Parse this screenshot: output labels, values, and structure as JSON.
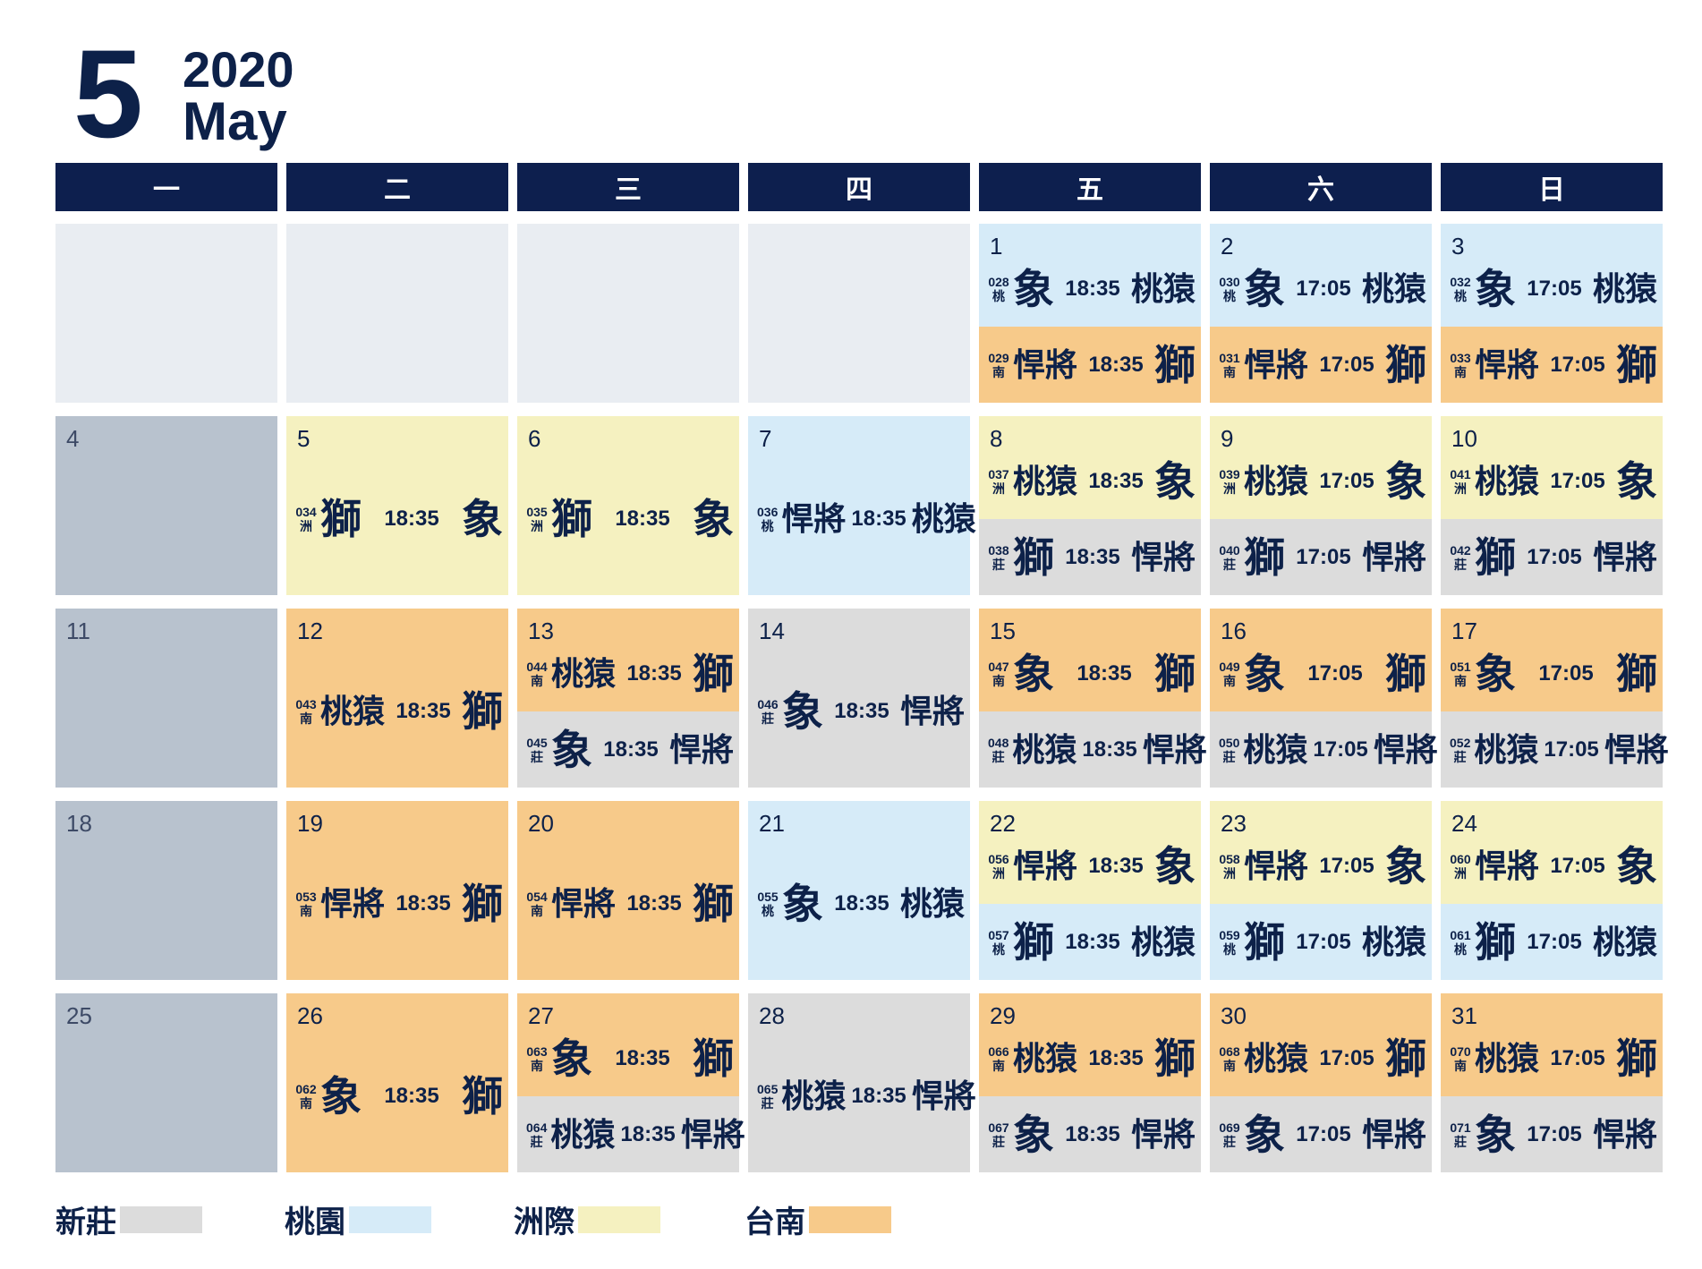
{
  "header": {
    "month_number": "5",
    "year": "2020",
    "month_name": "May"
  },
  "weekdays": [
    "一",
    "二",
    "三",
    "四",
    "五",
    "六",
    "日"
  ],
  "colors": {
    "新莊": "#dcdcdc",
    "桃園": "#d6ebf8",
    "洲際": "#f5f1c0",
    "台南": "#f7ca8a",
    "header": "#0d1f4e",
    "text": "#0d2149"
  },
  "legend": [
    {
      "label": "新莊",
      "color": "#dcdcdc"
    },
    {
      "label": "桃園",
      "color": "#d6ebf8"
    },
    {
      "label": "洲際",
      "color": "#f5f1c0"
    },
    {
      "label": "台南",
      "color": "#f7ca8a"
    }
  ],
  "weeks": [
    {
      "days": [
        {
          "blank": true
        },
        {
          "blank": true
        },
        {
          "blank": true
        },
        {
          "blank": true
        },
        {
          "day": "1",
          "games": [
            {
              "no": "028",
              "venue": "桃",
              "away": "象",
              "time": "18:35",
              "home": "桃猿",
              "color": "ty"
            },
            {
              "no": "029",
              "venue": "南",
              "away": "悍將",
              "time": "18:35",
              "home": "獅",
              "color": "tn"
            }
          ]
        },
        {
          "day": "2",
          "games": [
            {
              "no": "030",
              "venue": "桃",
              "away": "象",
              "time": "17:05",
              "home": "桃猿",
              "color": "ty"
            },
            {
              "no": "031",
              "venue": "南",
              "away": "悍將",
              "time": "17:05",
              "home": "獅",
              "color": "tn"
            }
          ]
        },
        {
          "day": "3",
          "games": [
            {
              "no": "032",
              "venue": "桃",
              "away": "象",
              "time": "17:05",
              "home": "桃猿",
              "color": "ty"
            },
            {
              "no": "033",
              "venue": "南",
              "away": "悍將",
              "time": "17:05",
              "home": "獅",
              "color": "tn"
            }
          ]
        }
      ]
    },
    {
      "days": [
        {
          "day": "4",
          "off": true
        },
        {
          "day": "5",
          "games": [
            {
              "no": "034",
              "venue": "洲",
              "away": "獅",
              "time": "18:35",
              "home": "象",
              "color": "zj"
            }
          ]
        },
        {
          "day": "6",
          "games": [
            {
              "no": "035",
              "venue": "洲",
              "away": "獅",
              "time": "18:35",
              "home": "象",
              "color": "zj"
            }
          ]
        },
        {
          "day": "7",
          "games": [
            {
              "no": "036",
              "venue": "桃",
              "away": "悍將",
              "time": "18:35",
              "home": "桃猿",
              "color": "ty"
            }
          ]
        },
        {
          "day": "8",
          "games": [
            {
              "no": "037",
              "venue": "洲",
              "away": "桃猿",
              "time": "18:35",
              "home": "象",
              "color": "zj"
            },
            {
              "no": "038",
              "venue": "莊",
              "away": "獅",
              "time": "18:35",
              "home": "悍將",
              "color": "nz"
            }
          ]
        },
        {
          "day": "9",
          "games": [
            {
              "no": "039",
              "venue": "洲",
              "away": "桃猿",
              "time": "17:05",
              "home": "象",
              "color": "zj"
            },
            {
              "no": "040",
              "venue": "莊",
              "away": "獅",
              "time": "17:05",
              "home": "悍將",
              "color": "nz"
            }
          ]
        },
        {
          "day": "10",
          "games": [
            {
              "no": "041",
              "venue": "洲",
              "away": "桃猿",
              "time": "17:05",
              "home": "象",
              "color": "zj"
            },
            {
              "no": "042",
              "venue": "莊",
              "away": "獅",
              "time": "17:05",
              "home": "悍將",
              "color": "nz"
            }
          ]
        }
      ]
    },
    {
      "days": [
        {
          "day": "11",
          "off": true
        },
        {
          "day": "12",
          "games": [
            {
              "no": "043",
              "venue": "南",
              "away": "桃猿",
              "time": "18:35",
              "home": "獅",
              "color": "tn"
            }
          ]
        },
        {
          "day": "13",
          "games": [
            {
              "no": "044",
              "venue": "南",
              "away": "桃猿",
              "time": "18:35",
              "home": "獅",
              "color": "tn"
            },
            {
              "no": "045",
              "venue": "莊",
              "away": "象",
              "time": "18:35",
              "home": "悍將",
              "color": "nz"
            }
          ]
        },
        {
          "day": "14",
          "games": [
            {
              "no": "046",
              "venue": "莊",
              "away": "象",
              "time": "18:35",
              "home": "悍將",
              "color": "nz"
            }
          ]
        },
        {
          "day": "15",
          "games": [
            {
              "no": "047",
              "venue": "南",
              "away": "象",
              "time": "18:35",
              "home": "獅",
              "color": "tn"
            },
            {
              "no": "048",
              "venue": "莊",
              "away": "桃猿",
              "time": "18:35",
              "home": "悍將",
              "color": "nz"
            }
          ]
        },
        {
          "day": "16",
          "games": [
            {
              "no": "049",
              "venue": "南",
              "away": "象",
              "time": "17:05",
              "home": "獅",
              "color": "tn"
            },
            {
              "no": "050",
              "venue": "莊",
              "away": "桃猿",
              "time": "17:05",
              "home": "悍將",
              "color": "nz"
            }
          ]
        },
        {
          "day": "17",
          "games": [
            {
              "no": "051",
              "venue": "南",
              "away": "象",
              "time": "17:05",
              "home": "獅",
              "color": "tn"
            },
            {
              "no": "052",
              "venue": "莊",
              "away": "桃猿",
              "time": "17:05",
              "home": "悍將",
              "color": "nz"
            }
          ]
        }
      ]
    },
    {
      "days": [
        {
          "day": "18",
          "off": true
        },
        {
          "day": "19",
          "games": [
            {
              "no": "053",
              "venue": "南",
              "away": "悍將",
              "time": "18:35",
              "home": "獅",
              "color": "tn"
            }
          ]
        },
        {
          "day": "20",
          "games": [
            {
              "no": "054",
              "venue": "南",
              "away": "悍將",
              "time": "18:35",
              "home": "獅",
              "color": "tn"
            }
          ]
        },
        {
          "day": "21",
          "games": [
            {
              "no": "055",
              "venue": "桃",
              "away": "象",
              "time": "18:35",
              "home": "桃猿",
              "color": "ty"
            }
          ]
        },
        {
          "day": "22",
          "games": [
            {
              "no": "056",
              "venue": "洲",
              "away": "悍將",
              "time": "18:35",
              "home": "象",
              "color": "zj"
            },
            {
              "no": "057",
              "venue": "桃",
              "away": "獅",
              "time": "18:35",
              "home": "桃猿",
              "color": "ty"
            }
          ]
        },
        {
          "day": "23",
          "games": [
            {
              "no": "058",
              "venue": "洲",
              "away": "悍將",
              "time": "17:05",
              "home": "象",
              "color": "zj"
            },
            {
              "no": "059",
              "venue": "桃",
              "away": "獅",
              "time": "17:05",
              "home": "桃猿",
              "color": "ty"
            }
          ]
        },
        {
          "day": "24",
          "games": [
            {
              "no": "060",
              "venue": "洲",
              "away": "悍將",
              "time": "17:05",
              "home": "象",
              "color": "zj"
            },
            {
              "no": "061",
              "venue": "桃",
              "away": "獅",
              "time": "17:05",
              "home": "桃猿",
              "color": "ty"
            }
          ]
        }
      ]
    },
    {
      "days": [
        {
          "day": "25",
          "off": true
        },
        {
          "day": "26",
          "games": [
            {
              "no": "062",
              "venue": "南",
              "away": "象",
              "time": "18:35",
              "home": "獅",
              "color": "tn"
            }
          ]
        },
        {
          "day": "27",
          "games": [
            {
              "no": "063",
              "venue": "南",
              "away": "象",
              "time": "18:35",
              "home": "獅",
              "color": "tn"
            },
            {
              "no": "064",
              "venue": "莊",
              "away": "桃猿",
              "time": "18:35",
              "home": "悍將",
              "color": "nz"
            }
          ]
        },
        {
          "day": "28",
          "games": [
            {
              "no": "065",
              "venue": "莊",
              "away": "桃猿",
              "time": "18:35",
              "home": "悍將",
              "color": "nz"
            }
          ]
        },
        {
          "day": "29",
          "games": [
            {
              "no": "066",
              "venue": "南",
              "away": "桃猿",
              "time": "18:35",
              "home": "獅",
              "color": "tn"
            },
            {
              "no": "067",
              "venue": "莊",
              "away": "象",
              "time": "18:35",
              "home": "悍將",
              "color": "nz"
            }
          ]
        },
        {
          "day": "30",
          "games": [
            {
              "no": "068",
              "venue": "南",
              "away": "桃猿",
              "time": "17:05",
              "home": "獅",
              "color": "tn"
            },
            {
              "no": "069",
              "venue": "莊",
              "away": "象",
              "time": "17:05",
              "home": "悍將",
              "color": "nz"
            }
          ]
        },
        {
          "day": "31",
          "games": [
            {
              "no": "070",
              "venue": "南",
              "away": "桃猿",
              "time": "17:05",
              "home": "獅",
              "color": "tn"
            },
            {
              "no": "071",
              "venue": "莊",
              "away": "象",
              "time": "17:05",
              "home": "悍將",
              "color": "nz"
            }
          ]
        }
      ]
    }
  ]
}
